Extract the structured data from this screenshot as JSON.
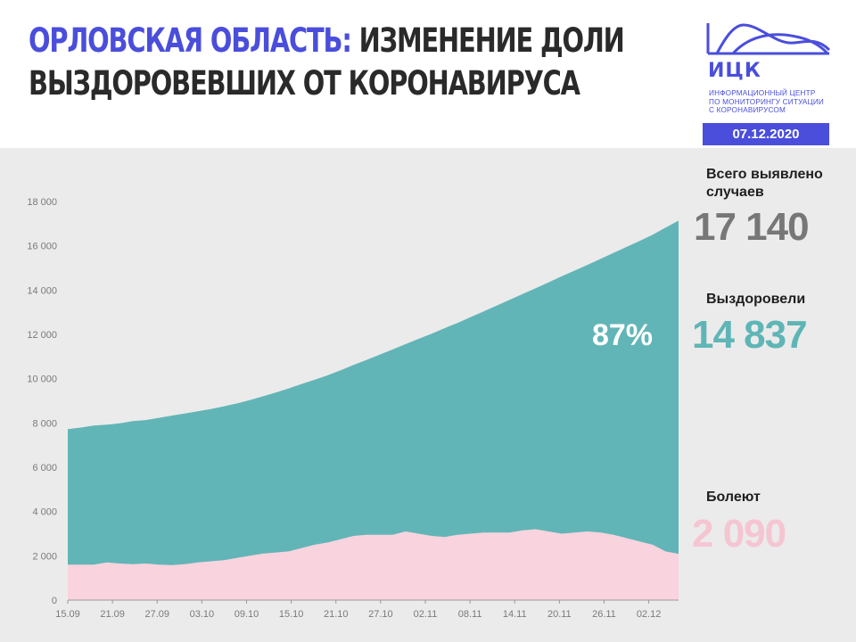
{
  "header": {
    "title_region": "ОРЛОВСКАЯ ОБЛАСТЬ:",
    "title_rest_line1": "ИЗМЕНЕНИЕ ДОЛИ",
    "title_line2": "ВЫЗДОРОВЕВШИХ ОТ КОРОНАВИРУСА"
  },
  "logo": {
    "name": "ИЦК",
    "subtitle": [
      "ИНФОРМАЦИОННЫЙ ЦЕНТР",
      "ПО МОНИТОРИНГУ СИТУАЦИИ",
      "С КОРОНАВИРУСОМ"
    ]
  },
  "date": "07.12.2020",
  "stats": {
    "total_label": "Всего выявлено случаев",
    "total_value": "17 140",
    "recovered_label": "Выздоровели",
    "recovered_value": "14 837",
    "sick_label": "Болеют",
    "sick_value": "2 090"
  },
  "colors": {
    "accent": "#4a4edb",
    "total_area": "#62b5b7",
    "sick_area": "#f9d3de",
    "total_text": "#777777",
    "recovered_text": "#5fb5b6",
    "sick_text": "#f5c5d2"
  },
  "chart_data": {
    "type": "area",
    "title": "",
    "xlabel": "",
    "ylabel": "",
    "ylim": [
      0,
      18000
    ],
    "yticks": [
      "0",
      "2 000",
      "4 000",
      "6 000",
      "8 000",
      "10 000",
      "12 000",
      "14 000",
      "16 000",
      "18 000"
    ],
    "xticks": [
      "15.09",
      "21.09",
      "27.09",
      "03.10",
      "09.10",
      "15.10",
      "21.10",
      "27.10",
      "02.11",
      "08.11",
      "14.11",
      "20.11",
      "26.11",
      "02.12"
    ],
    "annotation": "87%",
    "grid": false,
    "series": [
      {
        "name": "Всего выявлено случаев",
        "values": [
          7720,
          7790,
          7880,
          7920,
          7980,
          8080,
          8130,
          8230,
          8330,
          8430,
          8530,
          8630,
          8750,
          8880,
          9030,
          9200,
          9370,
          9560,
          9760,
          9950,
          10150,
          10380,
          10620,
          10850,
          11080,
          11320,
          11560,
          11800,
          12030,
          12280,
          12520,
          12780,
          13040,
          13300,
          13560,
          13820,
          14080,
          14350,
          14620,
          14880,
          15140,
          15410,
          15680,
          15950,
          16220,
          16500,
          16820,
          17140
        ]
      },
      {
        "name": "Болеют",
        "values": [
          1600,
          1600,
          1600,
          1700,
          1650,
          1620,
          1650,
          1600,
          1580,
          1620,
          1700,
          1750,
          1800,
          1900,
          2000,
          2100,
          2150,
          2200,
          2350,
          2500,
          2600,
          2750,
          2900,
          2950,
          2950,
          2950,
          3100,
          3000,
          2900,
          2850,
          2950,
          3000,
          3050,
          3050,
          3050,
          3150,
          3200,
          3100,
          3000,
          3050,
          3100,
          3050,
          2950,
          2800,
          2650,
          2500,
          2200,
          2090
        ]
      }
    ]
  }
}
